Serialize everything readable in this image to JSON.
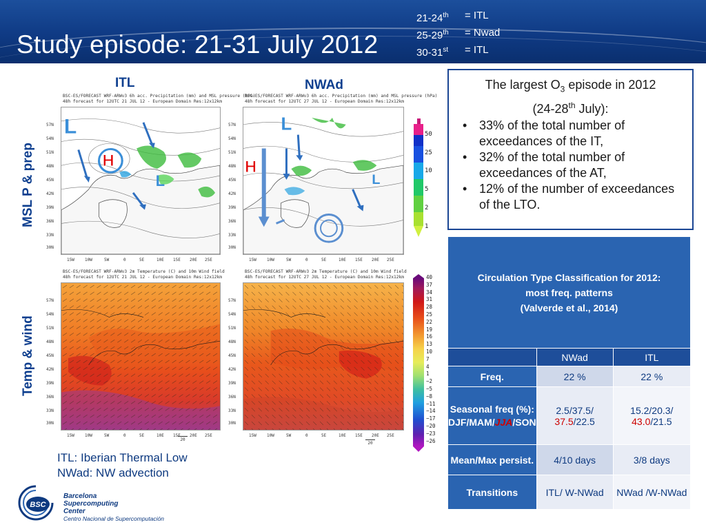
{
  "header": {
    "title": "Study episode: 21-31 July 2012",
    "periods": [
      {
        "dates": "21-24",
        "sup": "th",
        "type": "= ITL"
      },
      {
        "dates": "25-29",
        "sup": "th",
        "type": "= Nwad"
      },
      {
        "dates": "30-31",
        "sup": "st",
        "type": "= ITL"
      }
    ]
  },
  "columns": {
    "left": "ITL",
    "right": "NWAd"
  },
  "rows": {
    "top": "MSL P & prep",
    "bottom": "Temp & wind"
  },
  "maps": {
    "top_left": {
      "hdr1": "BSC-ES/FORECAST WRF-ARWv3  6h acc. Precipitation (mm) and MSL pressure (hPa)",
      "hdr2": "48h forecast for 12UTC 21 JUL 12 - European Domain Res:12x12km",
      "symbols": [
        "L",
        "H",
        "L"
      ]
    },
    "top_right": {
      "hdr1": "BSC-ES/FORECAST WRF-ARWv3  6h acc. Precipitation (mm) and MSL pressure (hPa)",
      "hdr2": "48h forecast for 12UTC 27 JUL 12 - European Domain Res:12x12km",
      "symbols": [
        "L",
        "H",
        "L"
      ]
    },
    "bottom_left": {
      "hdr1": "BSC-ES/FORECAST WRF-ARWv3  2m Temperature (C) and 10m Wind field",
      "hdr2": "48h forecast for 12UTC 21 JUL 12 - European Domain Res:12x12km"
    },
    "bottom_right": {
      "hdr1": "BSC-ES/FORECAST WRF-ARWv3  2m Temperature (C) and 10m Wind field",
      "hdr2": "48h forecast for 12UTC 27 JUL 12 - European Domain Res:12x12km"
    },
    "x_ticks": [
      "15W",
      "10W",
      "5W",
      "0",
      "5E",
      "10E",
      "15E",
      "20E",
      "25E"
    ],
    "y_ticks": [
      "57N",
      "54N",
      "51N",
      "48N",
      "45N",
      "42N",
      "39N",
      "36N",
      "33N",
      "30N"
    ],
    "wind_ref": "20"
  },
  "precip_colorbar": {
    "labels": [
      "50",
      "25",
      "10",
      "5",
      "2",
      "1"
    ]
  },
  "temp_colorbar": {
    "labels": [
      "40",
      "37",
      "34",
      "31",
      "28",
      "25",
      "22",
      "19",
      "16",
      "13",
      "10",
      "7",
      "4",
      "1",
      "−2",
      "−5",
      "−8",
      "−11",
      "−14",
      "−17",
      "−20",
      "−23",
      "−26"
    ]
  },
  "info": {
    "head_a": "The largest O",
    "head_sub": "3",
    "head_b": " episode in 2012",
    "head_c": "(24-28",
    "head_sup": "th",
    "head_d": " July):",
    "bullets": [
      "33% of the total number of exceedances of the IT,",
      "32% of the total number of exceedances of the AT,",
      "12% of the number of exceedances of the LTO."
    ]
  },
  "table": {
    "title_l1": "Circulation Type Classification for 2012:",
    "title_l2": "most freq. patterns",
    "title_l3": "(Valverde et al., 2014)",
    "col1": "NWad",
    "col2": "ITL",
    "freq_label": "Freq.",
    "freq_nwad": "22 %",
    "freq_itl": "22 %",
    "seasonal_label_a": "Seasonal freq (%): DJF/MAM/",
    "seasonal_label_jja": "JJA",
    "seasonal_label_b": "/SON",
    "seasonal_nwad_a": "2.5/37.5/",
    "seasonal_nwad_red": "37.5",
    "seasonal_nwad_b": "/22.5",
    "seasonal_itl_a": "15.2/20.3/",
    "seasonal_itl_red": "43.0",
    "seasonal_itl_b": "/21.5",
    "persist_label": "Mean/Max persist.",
    "persist_nwad": "4/10 days",
    "persist_itl": "3/8 days",
    "trans_label": "Transitions",
    "trans_nwad": "ITL/ W-NWad",
    "trans_itl": "NWad /W-NWad"
  },
  "footnote": {
    "line1": "ITL: Iberian Thermal Low",
    "line2": "NWad: NW advection"
  },
  "logo": {
    "abbr": "BSC",
    "line1": "Barcelona",
    "line2": "Supercomputing",
    "line3": "Center",
    "line4": "Centro Nacional de Supercomputación"
  }
}
